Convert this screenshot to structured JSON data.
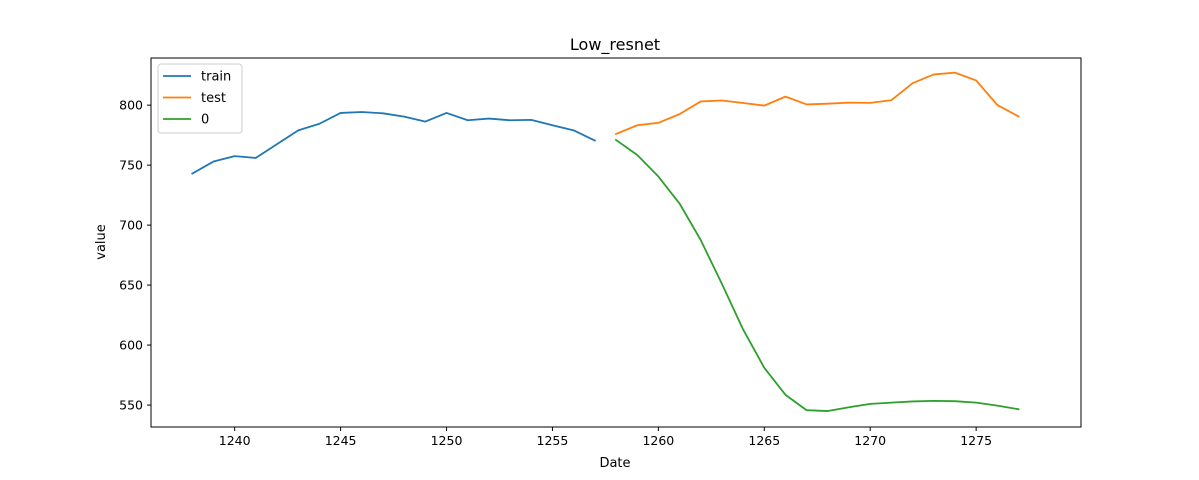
{
  "chart_data": {
    "type": "line",
    "title": "Low_resnet",
    "xlabel": "Date",
    "ylabel": "value",
    "xlim": [
      1236.05,
      1279.95
    ],
    "ylim": [
      531.7,
      839.3
    ],
    "xticks": [
      1240,
      1245,
      1250,
      1255,
      1260,
      1265,
      1270,
      1275
    ],
    "yticks": [
      550,
      600,
      650,
      700,
      750,
      800
    ],
    "grid": false,
    "legend_position": "top-left",
    "series": [
      {
        "name": "train",
        "color": "#1f77b4",
        "x": [
          1238,
          1239,
          1240,
          1241,
          1242,
          1243,
          1244,
          1245,
          1246,
          1247,
          1248,
          1249,
          1250,
          1251,
          1252,
          1253,
          1254,
          1255,
          1256,
          1257
        ],
        "y": [
          743,
          753,
          757.5,
          756,
          767.5,
          779,
          784.5,
          793.5,
          794.3,
          793.2,
          790.4,
          786.3,
          793.5,
          787.4,
          788.8,
          787.4,
          787.7,
          783.2,
          779,
          770.5
        ]
      },
      {
        "name": "test",
        "color": "#ff7f0e",
        "x": [
          1258,
          1259,
          1260,
          1261,
          1262,
          1263,
          1264,
          1265,
          1266,
          1267,
          1268,
          1269,
          1270,
          1271,
          1272,
          1273,
          1274,
          1275,
          1276,
          1277
        ],
        "y": [
          776,
          783.2,
          785.3,
          792.5,
          803.1,
          803.9,
          801.8,
          799.6,
          807.1,
          800.6,
          801.2,
          802.1,
          801.9,
          804.1,
          818.3,
          825.6,
          827.1,
          820.6,
          800.1,
          790.6
        ]
      },
      {
        "name": "0",
        "color": "#2ca02c",
        "x": [
          1258,
          1259,
          1260,
          1261,
          1262,
          1263,
          1264,
          1265,
          1266,
          1267,
          1268,
          1269,
          1270,
          1271,
          1272,
          1273,
          1274,
          1275,
          1276,
          1277
        ],
        "y": [
          771,
          758.5,
          740.5,
          718,
          687.5,
          651,
          613,
          581,
          558.5,
          545.7,
          545,
          548.2,
          551,
          552,
          553,
          553.5,
          553.2,
          552,
          549.5,
          546.5
        ]
      }
    ]
  }
}
